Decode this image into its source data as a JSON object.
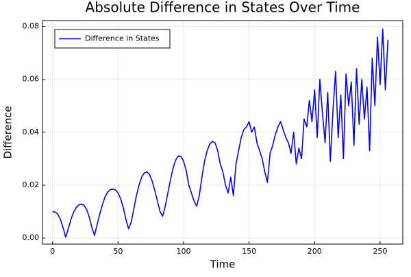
{
  "chart_data": {
    "type": "line",
    "title": "Absolute Difference in States Over Time",
    "xlabel": "Time",
    "ylabel": "Difference",
    "x": [
      0,
      2,
      4,
      6,
      8,
      10,
      12,
      14,
      16,
      18,
      20,
      22,
      24,
      26,
      28,
      30,
      32,
      34,
      36,
      38,
      40,
      42,
      44,
      46,
      48,
      50,
      52,
      54,
      56,
      58,
      60,
      62,
      64,
      66,
      68,
      70,
      72,
      74,
      76,
      78,
      80,
      82,
      84,
      86,
      88,
      90,
      92,
      94,
      96,
      98,
      100,
      102,
      104,
      106,
      108,
      110,
      112,
      114,
      116,
      118,
      120,
      122,
      124,
      126,
      128,
      130,
      132,
      134,
      136,
      138,
      140,
      142,
      144,
      146,
      148,
      150,
      152,
      154,
      156,
      158,
      160,
      162,
      164,
      166,
      168,
      170,
      172,
      174,
      176,
      178,
      180,
      182,
      184,
      186,
      188,
      190,
      192,
      194,
      196,
      198,
      200,
      202,
      204,
      206,
      208,
      210,
      212,
      214,
      216,
      218,
      220,
      222,
      224,
      226,
      228,
      230,
      232,
      234,
      236,
      238,
      240,
      242,
      244,
      246,
      248,
      250,
      252,
      254,
      256
    ],
    "series": [
      {
        "name": "Difference in States",
        "color": "#0000ff",
        "values": [
          0.01,
          0.0098,
          0.009,
          0.007,
          0.004,
          0.0003,
          0.0035,
          0.007,
          0.0097,
          0.0115,
          0.0125,
          0.0128,
          0.0124,
          0.0108,
          0.008,
          0.004,
          0.001,
          0.005,
          0.009,
          0.0125,
          0.0155,
          0.0173,
          0.0183,
          0.0185,
          0.0182,
          0.017,
          0.0148,
          0.0115,
          0.007,
          0.0035,
          0.006,
          0.011,
          0.016,
          0.02,
          0.023,
          0.0246,
          0.025,
          0.024,
          0.0215,
          0.018,
          0.014,
          0.01,
          0.0082,
          0.012,
          0.017,
          0.022,
          0.0265,
          0.0295,
          0.031,
          0.0308,
          0.029,
          0.0255,
          0.02,
          0.017,
          0.014,
          0.012,
          0.016,
          0.023,
          0.029,
          0.033,
          0.0355,
          0.0365,
          0.036,
          0.033,
          0.028,
          0.025,
          0.02,
          0.017,
          0.023,
          0.016,
          0.028,
          0.033,
          0.038,
          0.041,
          0.042,
          0.044,
          0.04,
          0.042,
          0.036,
          0.033,
          0.03,
          0.025,
          0.021,
          0.032,
          0.035,
          0.039,
          0.042,
          0.044,
          0.041,
          0.038,
          0.036,
          0.032,
          0.04,
          0.028,
          0.034,
          0.03,
          0.045,
          0.042,
          0.052,
          0.044,
          0.056,
          0.038,
          0.06,
          0.047,
          0.036,
          0.055,
          0.029,
          0.048,
          0.063,
          0.038,
          0.054,
          0.03,
          0.062,
          0.05,
          0.059,
          0.035,
          0.064,
          0.043,
          0.06,
          0.045,
          0.057,
          0.033,
          0.068,
          0.05,
          0.076,
          0.058,
          0.079,
          0.056,
          0.075
        ]
      }
    ],
    "xlim": [
      -7.7,
      267.3
    ],
    "xticks": [
      0,
      50,
      100,
      150,
      200,
      250
    ],
    "ylim": [
      -0.0023,
      0.0822
    ],
    "yticks": [
      {
        "value": 0,
        "label": "0.00"
      },
      {
        "value": 0.02,
        "label": "0.02"
      },
      {
        "value": 0.04,
        "label": "0.04"
      },
      {
        "value": 0.06,
        "label": "0.06"
      },
      {
        "value": 0.08,
        "label": "0.08"
      }
    ],
    "grid": true,
    "legend": "top-left"
  }
}
